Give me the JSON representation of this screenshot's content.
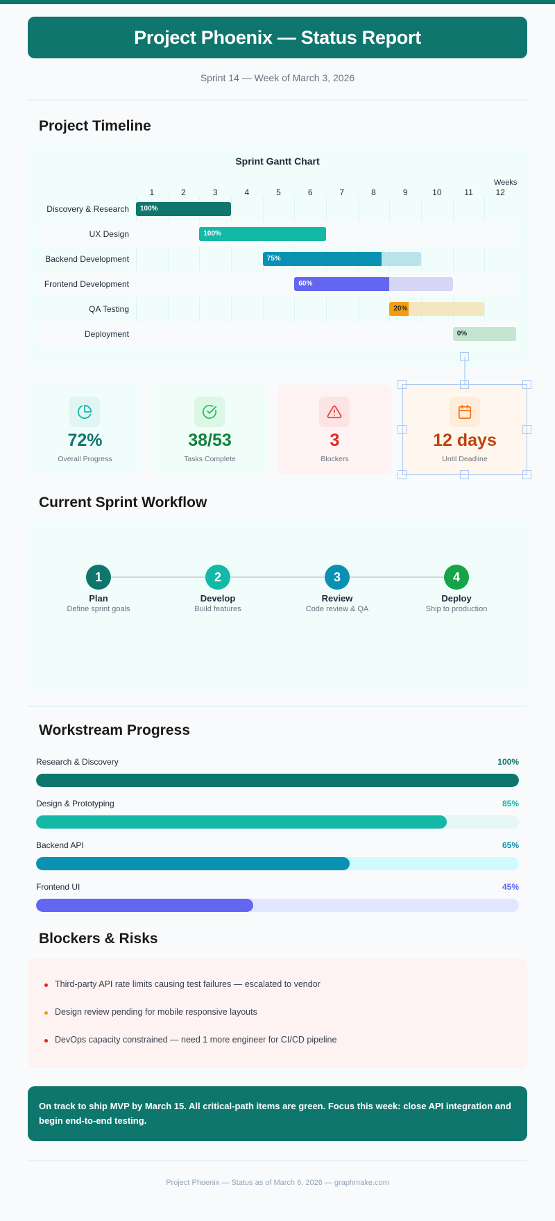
{
  "header": {
    "title": "Project Phoenix — Status Report",
    "subtitle": "Sprint 14 — Week of March 3, 2026"
  },
  "sections": {
    "timeline": "Project Timeline",
    "workflow": "Current Sprint Workflow",
    "workstreams": "Workstream Progress",
    "blockers": "Blockers & Risks"
  },
  "colors": {
    "brand": "#0f766e",
    "teal": "#14b8a6",
    "cyan": "#0891b2",
    "indigo": "#6366f1",
    "amber": "#f59e0b",
    "green": "#16a34a",
    "red": "#dc2626",
    "orange": "#c2410c"
  },
  "chart_data": {
    "type": "gantt",
    "title": "Sprint Gantt Chart",
    "xlabel": "Weeks",
    "x_ticks": [
      "1",
      "2",
      "3",
      "4",
      "5",
      "6",
      "7",
      "8",
      "9",
      "10",
      "11",
      "12"
    ],
    "xlim": [
      1,
      12
    ],
    "grid": true,
    "tasks": [
      {
        "name": "Discovery & Research",
        "start_week": 1,
        "end_week": 3,
        "progress": 100,
        "progress_label": "100%",
        "color": "#0f766e",
        "track_color": "#0f766e"
      },
      {
        "name": "UX Design",
        "start_week": 3,
        "end_week": 6,
        "progress": 100,
        "progress_label": "100%",
        "color": "#14b8a6",
        "track_color": "#14b8a6"
      },
      {
        "name": "Backend Development",
        "start_week": 5,
        "end_week": 9,
        "progress": 75,
        "progress_label": "75%",
        "color": "#0891b2",
        "track_color": "#b9e3ea"
      },
      {
        "name": "Frontend Development",
        "start_week": 6,
        "end_week": 10,
        "progress": 60,
        "progress_label": "60%",
        "color": "#6366f1",
        "track_color": "#d6d6f7"
      },
      {
        "name": "QA Testing",
        "start_week": 9,
        "end_week": 11,
        "progress": 20,
        "progress_label": "20%",
        "color": "#f59e0b",
        "track_color": "#f4e6c1"
      },
      {
        "name": "Deployment",
        "start_week": 11,
        "end_week": 12,
        "progress": 0,
        "progress_label": "0%",
        "color": "#16a34a",
        "track_color": "#c4e6d0"
      }
    ]
  },
  "stats": [
    {
      "icon": "pie-chart-icon",
      "value": "72%",
      "label": "Overall Progress",
      "color": "#0f766e",
      "bg": "#f0fdfa",
      "icon_bg": "#e1f5f2",
      "icon_color": "#14b8a6"
    },
    {
      "icon": "check-circle-icon",
      "value": "38/53",
      "label": "Tasks Complete",
      "color": "#15803d",
      "bg": "#f0fdf8",
      "icon_bg": "#dcf7e6",
      "icon_color": "#22c55e"
    },
    {
      "icon": "alert-triangle-icon",
      "value": "3",
      "label": "Blockers",
      "color": "#dc2626",
      "bg": "#fef2f2",
      "icon_bg": "#fde4e4",
      "icon_color": "#ef4444"
    },
    {
      "icon": "calendar-icon",
      "value": "12 days",
      "label": "Until Deadline",
      "color": "#c2410c",
      "bg": "#fff7ed",
      "icon_bg": "#ffeddc",
      "icon_color": "#f97316"
    }
  ],
  "workflow": {
    "steps": [
      {
        "number": "1",
        "name": "Plan",
        "desc": "Define sprint goals",
        "color": "#0f766e"
      },
      {
        "number": "2",
        "name": "Develop",
        "desc": "Build features",
        "color": "#14b8a6"
      },
      {
        "number": "3",
        "name": "Review",
        "desc": "Code review & QA",
        "color": "#0891b2"
      },
      {
        "number": "4",
        "name": "Deploy",
        "desc": "Ship to production",
        "color": "#16a34a"
      }
    ]
  },
  "workstreams": [
    {
      "label": "Research & Discovery",
      "pct": "100%",
      "value": 100,
      "color": "#0f766e",
      "track": "#e6f4f1"
    },
    {
      "label": "Design & Prototyping",
      "pct": "85%",
      "value": 85,
      "color": "#14b8a6",
      "track": "#e6f6f3"
    },
    {
      "label": "Backend API",
      "pct": "65%",
      "value": 65,
      "color": "#0891b2",
      "track": "#cffafe"
    },
    {
      "label": "Frontend UI",
      "pct": "45%",
      "value": 45,
      "color": "#6366f1",
      "track": "#e0e7ff"
    }
  ],
  "blockers": [
    {
      "text": "Third-party API rate limits causing test failures — escalated to vendor",
      "severity": "high",
      "dot": "#dc2626"
    },
    {
      "text": "Design review pending for mobile responsive layouts",
      "severity": "medium",
      "dot": "#f59e0b"
    },
    {
      "text": "DevOps capacity constrained — need 1 more engineer for CI/CD pipeline",
      "severity": "high",
      "dot": "#dc2626"
    }
  ],
  "summary": "On track to ship MVP by March 15. All critical-path items are green. Focus this week: close API integration and begin end-to-end testing.",
  "footer": "Project Phoenix — Status as of March 6, 2026 — graphmake.com"
}
